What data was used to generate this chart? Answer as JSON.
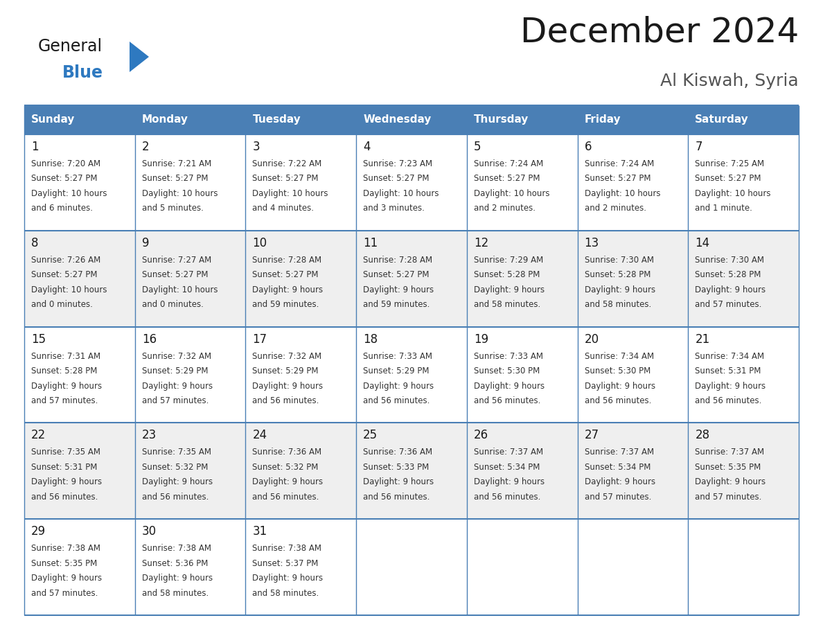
{
  "title": "December 2024",
  "subtitle": "Al Kiswah, Syria",
  "header_color": "#4A7FB5",
  "header_text_color": "#FFFFFF",
  "border_color": "#4A7FB5",
  "logo_text_color": "#1a1a1a",
  "logo_blue_color": "#2E79C0",
  "triangle_color": "#2E79C0",
  "days_of_week": [
    "Sunday",
    "Monday",
    "Tuesday",
    "Wednesday",
    "Thursday",
    "Friday",
    "Saturday"
  ],
  "calendar_data": [
    [
      {
        "day": "1",
        "sunrise": "7:20 AM",
        "sunset": "5:27 PM",
        "daylight1": "10 hours",
        "daylight2": "and 6 minutes."
      },
      {
        "day": "2",
        "sunrise": "7:21 AM",
        "sunset": "5:27 PM",
        "daylight1": "10 hours",
        "daylight2": "and 5 minutes."
      },
      {
        "day": "3",
        "sunrise": "7:22 AM",
        "sunset": "5:27 PM",
        "daylight1": "10 hours",
        "daylight2": "and 4 minutes."
      },
      {
        "day": "4",
        "sunrise": "7:23 AM",
        "sunset": "5:27 PM",
        "daylight1": "10 hours",
        "daylight2": "and 3 minutes."
      },
      {
        "day": "5",
        "sunrise": "7:24 AM",
        "sunset": "5:27 PM",
        "daylight1": "10 hours",
        "daylight2": "and 2 minutes."
      },
      {
        "day": "6",
        "sunrise": "7:24 AM",
        "sunset": "5:27 PM",
        "daylight1": "10 hours",
        "daylight2": "and 2 minutes."
      },
      {
        "day": "7",
        "sunrise": "7:25 AM",
        "sunset": "5:27 PM",
        "daylight1": "10 hours",
        "daylight2": "and 1 minute."
      }
    ],
    [
      {
        "day": "8",
        "sunrise": "7:26 AM",
        "sunset": "5:27 PM",
        "daylight1": "10 hours",
        "daylight2": "and 0 minutes."
      },
      {
        "day": "9",
        "sunrise": "7:27 AM",
        "sunset": "5:27 PM",
        "daylight1": "10 hours",
        "daylight2": "and 0 minutes."
      },
      {
        "day": "10",
        "sunrise": "7:28 AM",
        "sunset": "5:27 PM",
        "daylight1": "9 hours",
        "daylight2": "and 59 minutes."
      },
      {
        "day": "11",
        "sunrise": "7:28 AM",
        "sunset": "5:27 PM",
        "daylight1": "9 hours",
        "daylight2": "and 59 minutes."
      },
      {
        "day": "12",
        "sunrise": "7:29 AM",
        "sunset": "5:28 PM",
        "daylight1": "9 hours",
        "daylight2": "and 58 minutes."
      },
      {
        "day": "13",
        "sunrise": "7:30 AM",
        "sunset": "5:28 PM",
        "daylight1": "9 hours",
        "daylight2": "and 58 minutes."
      },
      {
        "day": "14",
        "sunrise": "7:30 AM",
        "sunset": "5:28 PM",
        "daylight1": "9 hours",
        "daylight2": "and 57 minutes."
      }
    ],
    [
      {
        "day": "15",
        "sunrise": "7:31 AM",
        "sunset": "5:28 PM",
        "daylight1": "9 hours",
        "daylight2": "and 57 minutes."
      },
      {
        "day": "16",
        "sunrise": "7:32 AM",
        "sunset": "5:29 PM",
        "daylight1": "9 hours",
        "daylight2": "and 57 minutes."
      },
      {
        "day": "17",
        "sunrise": "7:32 AM",
        "sunset": "5:29 PM",
        "daylight1": "9 hours",
        "daylight2": "and 56 minutes."
      },
      {
        "day": "18",
        "sunrise": "7:33 AM",
        "sunset": "5:29 PM",
        "daylight1": "9 hours",
        "daylight2": "and 56 minutes."
      },
      {
        "day": "19",
        "sunrise": "7:33 AM",
        "sunset": "5:30 PM",
        "daylight1": "9 hours",
        "daylight2": "and 56 minutes."
      },
      {
        "day": "20",
        "sunrise": "7:34 AM",
        "sunset": "5:30 PM",
        "daylight1": "9 hours",
        "daylight2": "and 56 minutes."
      },
      {
        "day": "21",
        "sunrise": "7:34 AM",
        "sunset": "5:31 PM",
        "daylight1": "9 hours",
        "daylight2": "and 56 minutes."
      }
    ],
    [
      {
        "day": "22",
        "sunrise": "7:35 AM",
        "sunset": "5:31 PM",
        "daylight1": "9 hours",
        "daylight2": "and 56 minutes."
      },
      {
        "day": "23",
        "sunrise": "7:35 AM",
        "sunset": "5:32 PM",
        "daylight1": "9 hours",
        "daylight2": "and 56 minutes."
      },
      {
        "day": "24",
        "sunrise": "7:36 AM",
        "sunset": "5:32 PM",
        "daylight1": "9 hours",
        "daylight2": "and 56 minutes."
      },
      {
        "day": "25",
        "sunrise": "7:36 AM",
        "sunset": "5:33 PM",
        "daylight1": "9 hours",
        "daylight2": "and 56 minutes."
      },
      {
        "day": "26",
        "sunrise": "7:37 AM",
        "sunset": "5:34 PM",
        "daylight1": "9 hours",
        "daylight2": "and 56 minutes."
      },
      {
        "day": "27",
        "sunrise": "7:37 AM",
        "sunset": "5:34 PM",
        "daylight1": "9 hours",
        "daylight2": "and 57 minutes."
      },
      {
        "day": "28",
        "sunrise": "7:37 AM",
        "sunset": "5:35 PM",
        "daylight1": "9 hours",
        "daylight2": "and 57 minutes."
      }
    ],
    [
      {
        "day": "29",
        "sunrise": "7:38 AM",
        "sunset": "5:35 PM",
        "daylight1": "9 hours",
        "daylight2": "and 57 minutes."
      },
      {
        "day": "30",
        "sunrise": "7:38 AM",
        "sunset": "5:36 PM",
        "daylight1": "9 hours",
        "daylight2": "and 58 minutes."
      },
      {
        "day": "31",
        "sunrise": "7:38 AM",
        "sunset": "5:37 PM",
        "daylight1": "9 hours",
        "daylight2": "and 58 minutes."
      },
      null,
      null,
      null,
      null
    ]
  ]
}
